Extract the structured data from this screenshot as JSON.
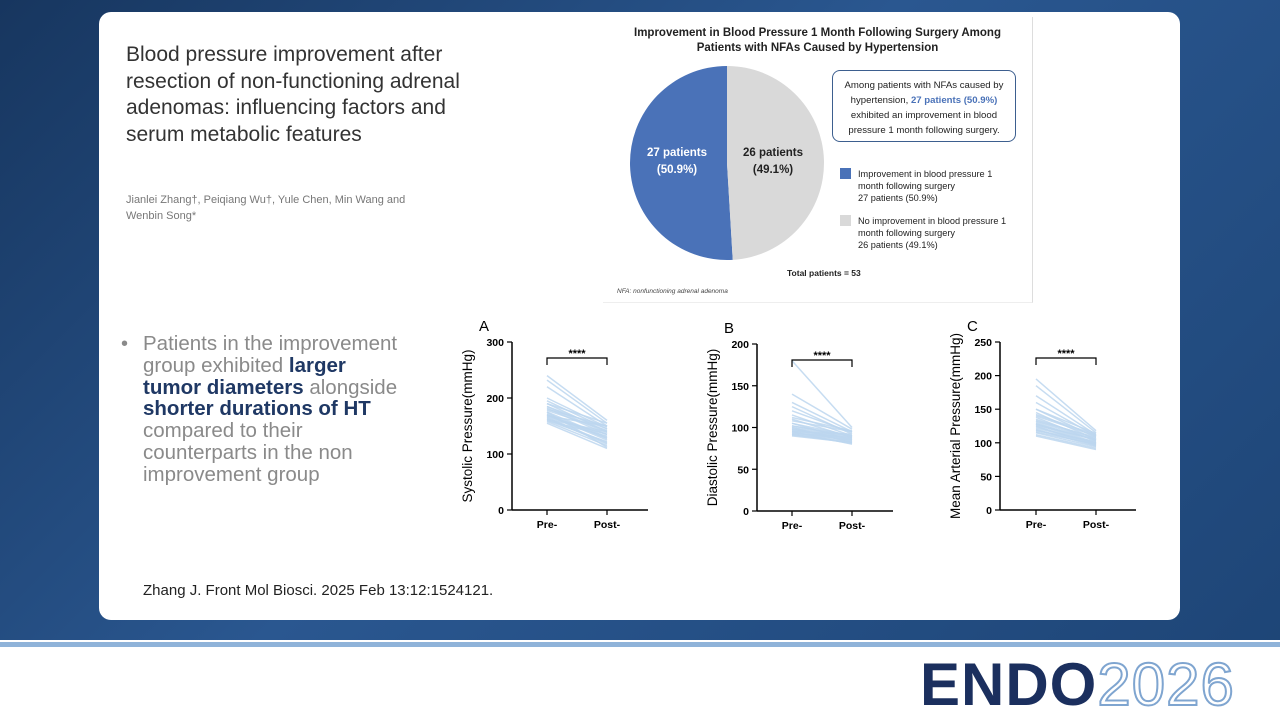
{
  "slide": {
    "title": "Blood pressure improvement after resection of non-functioning adrenal adenomas: influencing factors and serum metabolic features",
    "authors": "Jianlei Zhang†, Peiqiang Wu†, Yule Chen, Min Wang and Wenbin Song*",
    "bullet": [
      "Patients in the improvement group exhibited ",
      "larger tumor diameters",
      " alongside ",
      "shorter durations of HT",
      " compared to their counterparts in the non improvement group"
    ],
    "citation": "Zhang J. Front Mol Biosci. 2025 Feb 13:12:1524121.",
    "logo": [
      "ENDO",
      "2026"
    ]
  },
  "chart_data": [
    {
      "type": "pie",
      "title": "Improvement in Blood Pressure 1 Month Following Surgery Among Patients with NFAs Caused by Hypertension",
      "categories": [
        "Improvement in blood pressure 1 month following surgery",
        "No improvement in blood pressure 1 month following surgery"
      ],
      "values": [
        27,
        26
      ],
      "value_labels": [
        "27 patients (50.9%)",
        "26 patients (49.1%)"
      ],
      "colors": [
        "#4a72b8",
        "#d9d9d9"
      ],
      "annotation": [
        "Among patients with NFAs caused by hypertension, ",
        "27 patients (50.9%)",
        " exhibited an improvement in blood pressure 1 month following surgery."
      ],
      "total": "Total patients = 53",
      "footnote": "NFA: nonfunctioning adrenal adenoma"
    },
    {
      "type": "line",
      "panel": "A",
      "ylabel": "Systolic Pressure(mmHg)",
      "categories": [
        "Pre-",
        "Post-"
      ],
      "significance": "****",
      "color": "#bcd6ee",
      "ylim": [
        0,
        300
      ],
      "yticks": [
        0,
        100,
        200,
        300
      ],
      "series": [
        {
          "values": [
            240,
            160
          ]
        },
        {
          "values": [
            232,
            155
          ]
        },
        {
          "values": [
            220,
            150
          ]
        },
        {
          "values": [
            200,
            148
          ]
        },
        {
          "values": [
            195,
            145
          ]
        },
        {
          "values": [
            190,
            140
          ]
        },
        {
          "values": [
            185,
            138
          ]
        },
        {
          "values": [
            182,
            135
          ]
        },
        {
          "values": [
            180,
            150
          ]
        },
        {
          "values": [
            178,
            142
          ]
        },
        {
          "values": [
            175,
            130
          ]
        },
        {
          "values": [
            172,
            128
          ]
        },
        {
          "values": [
            170,
            125
          ]
        },
        {
          "values": [
            168,
            150
          ]
        },
        {
          "values": [
            166,
            135
          ]
        },
        {
          "values": [
            165,
            120
          ]
        },
        {
          "values": [
            163,
            118
          ]
        },
        {
          "values": [
            162,
            140
          ]
        },
        {
          "values": [
            160,
            132
          ]
        },
        {
          "values": [
            158,
            115
          ]
        },
        {
          "values": [
            175,
            112
          ]
        },
        {
          "values": [
            185,
            145
          ]
        },
        {
          "values": [
            170,
            128
          ]
        },
        {
          "values": [
            160,
            122
          ]
        },
        {
          "values": [
            155,
            110
          ]
        },
        {
          "values": [
            190,
            155
          ]
        },
        {
          "values": [
            168,
            135
          ]
        }
      ]
    },
    {
      "type": "line",
      "panel": "B",
      "ylabel": "Diastolic Pressure(mmHg)",
      "categories": [
        "Pre-",
        "Post-"
      ],
      "significance": "****",
      "color": "#bcd6ee",
      "ylim": [
        0,
        200
      ],
      "yticks": [
        0,
        50,
        100,
        150,
        200
      ],
      "series": [
        {
          "values": [
            180,
            100
          ]
        },
        {
          "values": [
            140,
            98
          ]
        },
        {
          "values": [
            130,
            95
          ]
        },
        {
          "values": [
            125,
            92
          ]
        },
        {
          "values": [
            115,
            90
          ]
        },
        {
          "values": [
            110,
            88
          ]
        },
        {
          "values": [
            108,
            95
          ]
        },
        {
          "values": [
            105,
            85
          ]
        },
        {
          "values": [
            102,
            90
          ]
        },
        {
          "values": [
            100,
            88
          ]
        },
        {
          "values": [
            100,
            82
          ]
        },
        {
          "values": [
            98,
            86
          ]
        },
        {
          "values": [
            96,
            84
          ]
        },
        {
          "values": [
            95,
            80
          ]
        },
        {
          "values": [
            95,
            92
          ]
        },
        {
          "values": [
            93,
            88
          ]
        },
        {
          "values": [
            92,
            85
          ]
        },
        {
          "values": [
            91,
            83
          ]
        },
        {
          "values": [
            90,
            82
          ]
        },
        {
          "values": [
            105,
            90
          ]
        },
        {
          "values": [
            112,
            96
          ]
        },
        {
          "values": [
            98,
            87
          ]
        },
        {
          "values": [
            94,
            85
          ]
        },
        {
          "values": [
            92,
            81
          ]
        },
        {
          "values": [
            120,
            94
          ]
        },
        {
          "values": [
            102,
            89
          ]
        },
        {
          "values": [
            97,
            86
          ]
        }
      ]
    },
    {
      "type": "line",
      "panel": "C",
      "ylabel": "Mean Arterial Pressure(mmHg)",
      "categories": [
        "Pre-",
        "Post-"
      ],
      "significance": "****",
      "color": "#bcd6ee",
      "ylim": [
        0,
        250
      ],
      "yticks": [
        0,
        50,
        100,
        150,
        200,
        250
      ],
      "series": [
        {
          "values": [
            195,
            118
          ]
        },
        {
          "values": [
            185,
            115
          ]
        },
        {
          "values": [
            170,
            112
          ]
        },
        {
          "values": [
            160,
            110
          ]
        },
        {
          "values": [
            150,
            108
          ]
        },
        {
          "values": [
            145,
            105
          ]
        },
        {
          "values": [
            140,
            110
          ]
        },
        {
          "values": [
            138,
            102
          ]
        },
        {
          "values": [
            135,
            106
          ]
        },
        {
          "values": [
            132,
            104
          ]
        },
        {
          "values": [
            130,
            100
          ]
        },
        {
          "values": [
            128,
            98
          ]
        },
        {
          "values": [
            126,
            105
          ]
        },
        {
          "values": [
            125,
            96
          ]
        },
        {
          "values": [
            122,
            100
          ]
        },
        {
          "values": [
            120,
            95
          ]
        },
        {
          "values": [
            118,
            102
          ]
        },
        {
          "values": [
            116,
            98
          ]
        },
        {
          "values": [
            115,
            94
          ]
        },
        {
          "values": [
            112,
            92
          ]
        },
        {
          "values": [
            110,
            90
          ]
        },
        {
          "values": [
            142,
            112
          ]
        },
        {
          "values": [
            128,
            104
          ]
        },
        {
          "values": [
            124,
            99
          ]
        },
        {
          "values": [
            119,
            97
          ]
        },
        {
          "values": [
            133,
            108
          ]
        },
        {
          "values": [
            150,
            114
          ]
        }
      ]
    }
  ]
}
